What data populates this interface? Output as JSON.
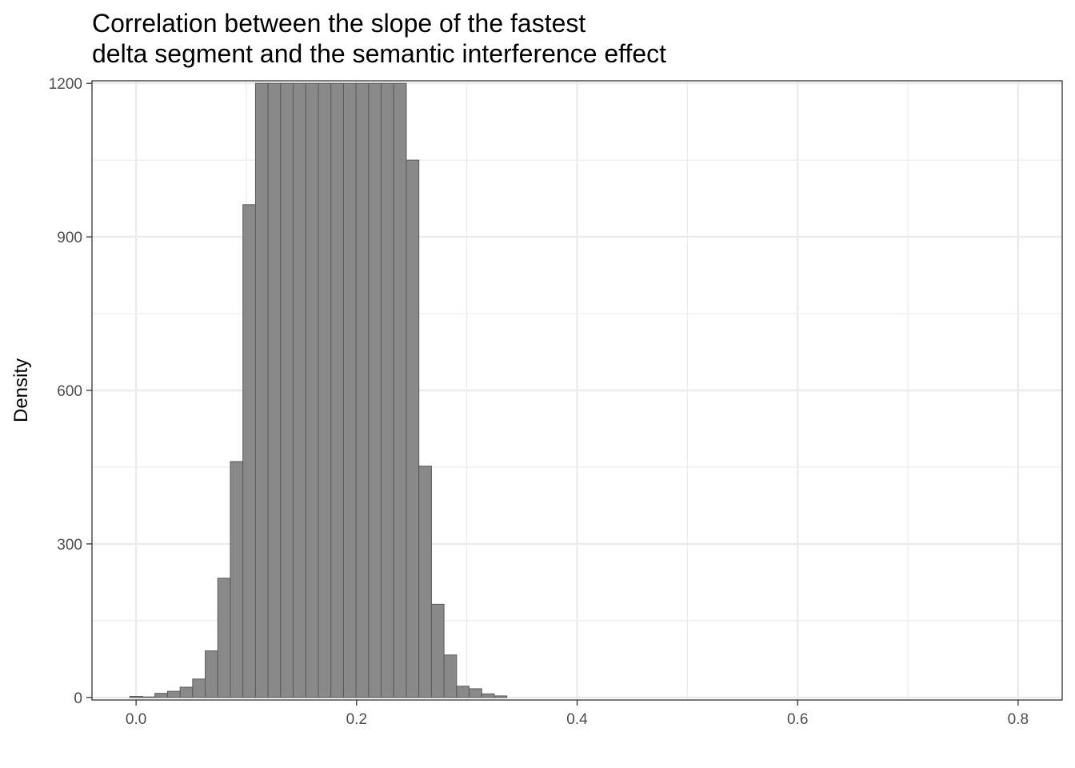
{
  "chart_data": {
    "type": "bar",
    "subtype": "histogram",
    "title_lines": [
      "Correlation between the slope of the fastest",
      "delta segment and the semantic interference effect"
    ],
    "xlabel": "",
    "ylabel": "Density",
    "xlim": [
      -0.04,
      0.84
    ],
    "ylim": [
      -5,
      1205
    ],
    "x_ticks": [
      {
        "value": 0.0,
        "label": "0.0"
      },
      {
        "value": 0.2,
        "label": "0.2"
      },
      {
        "value": 0.4,
        "label": "0.4"
      },
      {
        "value": 0.6,
        "label": "0.6"
      },
      {
        "value": 0.8,
        "label": "0.8"
      }
    ],
    "y_ticks": [
      {
        "value": 0,
        "label": "0"
      },
      {
        "value": 300,
        "label": "300"
      },
      {
        "value": 600,
        "label": "600"
      },
      {
        "value": 900,
        "label": "900"
      },
      {
        "value": 1200,
        "label": "1200"
      }
    ],
    "x_minor_ticks": [
      0.1,
      0.3,
      0.5,
      0.7
    ],
    "y_minor_ticks": [
      150,
      450,
      750,
      1050
    ],
    "grid": true,
    "bin_width": 0.0114,
    "bin_start": -0.0057,
    "bin_values": [
      2,
      1,
      8,
      12,
      20,
      36,
      91,
      233,
      461,
      963,
      1200,
      1200,
      1200,
      1200,
      1200,
      1200,
      1200,
      1200,
      1200,
      1200,
      1200,
      1200,
      1050,
      452,
      182,
      83,
      22,
      17,
      7,
      3
    ],
    "bar_fill": "#898989",
    "bar_stroke": "#5a5a5a"
  }
}
